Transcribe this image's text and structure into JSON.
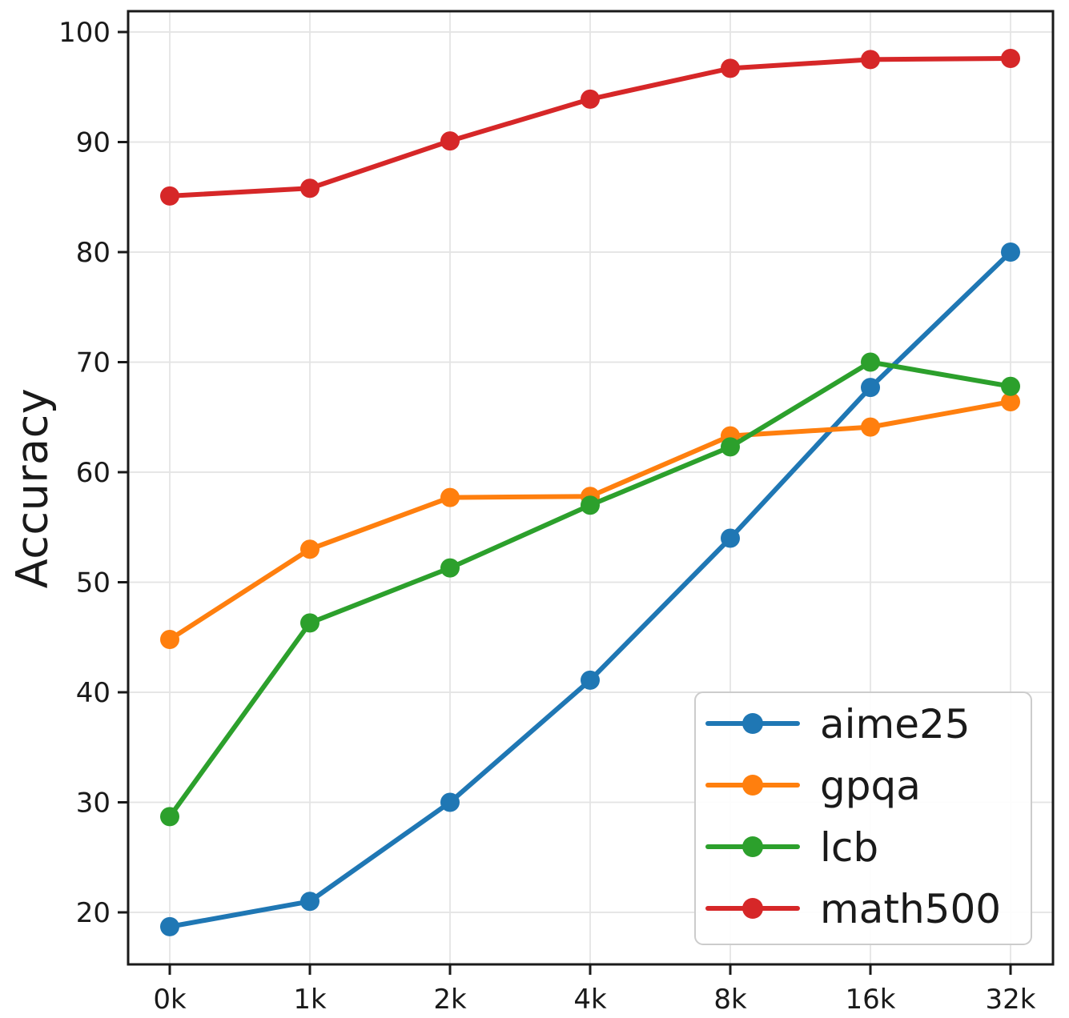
{
  "chart_data": {
    "type": "line",
    "title": "",
    "xlabel": "",
    "ylabel": "Accuracy",
    "categories": [
      "0k",
      "1k",
      "2k",
      "4k",
      "8k",
      "16k",
      "32k"
    ],
    "yticks": [
      20,
      30,
      40,
      50,
      60,
      70,
      80,
      90,
      100
    ],
    "ylim": [
      15.3,
      101.9
    ],
    "grid": true,
    "legend_position": "lower right",
    "series": [
      {
        "name": "aime25",
        "color": "#1f77b4",
        "values": [
          18.7,
          21.0,
          30.0,
          41.1,
          54.0,
          67.7,
          80.0
        ]
      },
      {
        "name": "gpqa",
        "color": "#ff7f0e",
        "values": [
          44.8,
          53.0,
          57.7,
          57.8,
          63.3,
          64.1,
          66.4
        ]
      },
      {
        "name": "lcb",
        "color": "#2ca02c",
        "values": [
          28.7,
          46.3,
          51.3,
          57.0,
          62.3,
          70.0,
          67.8
        ]
      },
      {
        "name": "math500",
        "color": "#d62728",
        "values": [
          85.1,
          85.8,
          90.1,
          93.9,
          96.7,
          97.5,
          97.6
        ]
      }
    ]
  }
}
